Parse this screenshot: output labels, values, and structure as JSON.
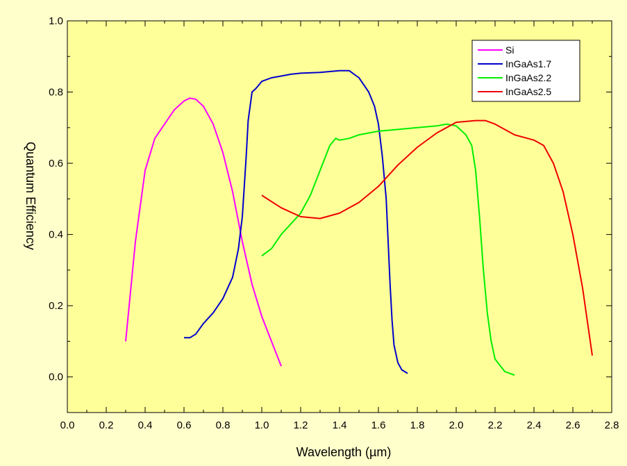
{
  "chart_data": {
    "type": "line",
    "title": "",
    "xlabel": "Wavelength (µm)",
    "ylabel": "Quantum Efficiency",
    "xlim": [
      0.0,
      2.8
    ],
    "ylim": [
      -0.1,
      1.0
    ],
    "xticks": [
      0.0,
      0.2,
      0.4,
      0.6,
      0.8,
      1.0,
      1.2,
      1.4,
      1.6,
      1.8,
      2.0,
      2.2,
      2.4,
      2.6,
      2.8
    ],
    "xtick_labels": [
      "0.0",
      "0.2",
      "0.4",
      "0.6",
      "0.8",
      "1.0",
      "1.2",
      "1.4",
      "1.6",
      "1.8",
      "2.0",
      "2.2",
      "2.4",
      "2.6",
      "2.8"
    ],
    "yticks": [
      0.0,
      0.2,
      0.4,
      0.6,
      0.8,
      1.0
    ],
    "ytick_labels": [
      "0.0",
      "0.2",
      "0.4",
      "0.6",
      "0.8",
      "1.0"
    ],
    "grid": false,
    "legend_position": "top-right",
    "series": [
      {
        "name": "Si",
        "color": "#FF00FF",
        "x": [
          0.3,
          0.35,
          0.4,
          0.45,
          0.5,
          0.55,
          0.6,
          0.63,
          0.66,
          0.7,
          0.75,
          0.8,
          0.85,
          0.9,
          0.95,
          1.0,
          1.05,
          1.1
        ],
        "y": [
          0.1,
          0.38,
          0.58,
          0.67,
          0.71,
          0.75,
          0.775,
          0.783,
          0.78,
          0.76,
          0.71,
          0.63,
          0.52,
          0.38,
          0.26,
          0.17,
          0.1,
          0.03
        ]
      },
      {
        "name": "InGaAs1.7",
        "color": "#0000CC",
        "x": [
          0.6,
          0.63,
          0.66,
          0.7,
          0.75,
          0.8,
          0.85,
          0.88,
          0.9,
          0.92,
          0.93,
          0.95,
          0.97,
          1.0,
          1.05,
          1.1,
          1.15,
          1.2,
          1.3,
          1.4,
          1.45,
          1.5,
          1.55,
          1.58,
          1.6,
          1.62,
          1.64,
          1.65,
          1.66,
          1.67,
          1.68,
          1.7,
          1.72,
          1.75
        ],
        "y": [
          0.11,
          0.11,
          0.12,
          0.15,
          0.18,
          0.22,
          0.28,
          0.36,
          0.45,
          0.62,
          0.72,
          0.8,
          0.81,
          0.83,
          0.84,
          0.845,
          0.85,
          0.853,
          0.855,
          0.86,
          0.86,
          0.84,
          0.8,
          0.76,
          0.71,
          0.62,
          0.5,
          0.38,
          0.26,
          0.16,
          0.09,
          0.04,
          0.02,
          0.01
        ]
      },
      {
        "name": "InGaAs2.2",
        "color": "#00EE00",
        "x": [
          1.0,
          1.05,
          1.1,
          1.15,
          1.2,
          1.25,
          1.3,
          1.35,
          1.38,
          1.4,
          1.45,
          1.5,
          1.6,
          1.7,
          1.8,
          1.9,
          1.95,
          2.0,
          2.05,
          2.08,
          2.1,
          2.12,
          2.14,
          2.16,
          2.18,
          2.2,
          2.25,
          2.3
        ],
        "y": [
          0.34,
          0.36,
          0.4,
          0.43,
          0.46,
          0.51,
          0.58,
          0.65,
          0.67,
          0.665,
          0.67,
          0.68,
          0.69,
          0.695,
          0.7,
          0.705,
          0.71,
          0.705,
          0.68,
          0.65,
          0.58,
          0.45,
          0.3,
          0.18,
          0.1,
          0.05,
          0.015,
          0.005
        ]
      },
      {
        "name": "InGaAs2.5",
        "color": "#EE0000",
        "x": [
          1.0,
          1.1,
          1.2,
          1.3,
          1.4,
          1.5,
          1.6,
          1.7,
          1.8,
          1.9,
          2.0,
          2.1,
          2.15,
          2.2,
          2.3,
          2.4,
          2.45,
          2.5,
          2.55,
          2.6,
          2.65,
          2.7
        ],
        "y": [
          0.51,
          0.475,
          0.45,
          0.445,
          0.46,
          0.49,
          0.535,
          0.595,
          0.645,
          0.685,
          0.715,
          0.72,
          0.72,
          0.71,
          0.68,
          0.665,
          0.65,
          0.6,
          0.52,
          0.4,
          0.25,
          0.06
        ]
      }
    ]
  }
}
